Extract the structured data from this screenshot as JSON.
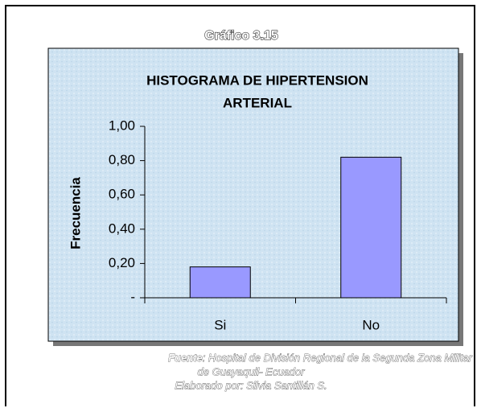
{
  "chart_data": {
    "type": "bar",
    "figure_label": "Gráfico 3.15",
    "title_lines": [
      "HISTOGRAMA DE HIPERTENSION",
      "ARTERIAL"
    ],
    "ylabel": "Frecuencia",
    "categories": [
      "Si",
      "No"
    ],
    "values": [
      0.18,
      0.82
    ],
    "color": "#9999ff",
    "ylim": [
      0,
      1
    ],
    "yticks": [
      {
        "value": 0,
        "label": "-"
      },
      {
        "value": 0.2,
        "label": "0,20"
      },
      {
        "value": 0.4,
        "label": "0,40"
      },
      {
        "value": 0.6,
        "label": "0,60"
      },
      {
        "value": 0.8,
        "label": "0,80"
      },
      {
        "value": 1,
        "label": "1,00"
      }
    ],
    "grid": false,
    "source_label": "Fuente",
    "source_lines": [
      ": Hospital de División Regional de la Segunda Zona Militar",
      "de Guayaquil- Ecuador"
    ],
    "credit": "Elaborado por: Silvia Santillán S."
  }
}
